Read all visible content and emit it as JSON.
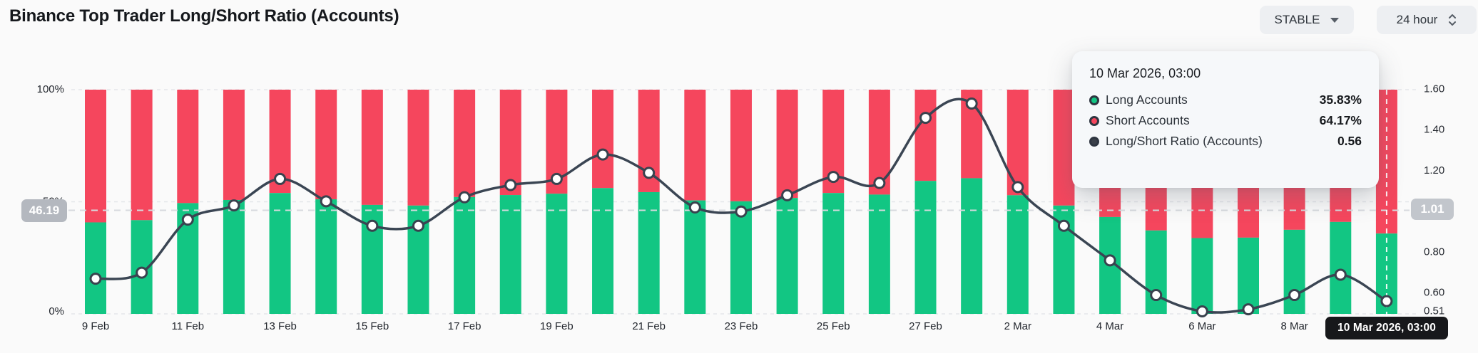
{
  "header": {
    "title": "Binance Top Trader Long/Short Ratio (Accounts)",
    "stable_label": "STABLE",
    "interval_label": "24 hour"
  },
  "left_axis": {
    "tick_labels": [
      "100%",
      "50%",
      "0%"
    ],
    "tick_values": [
      100,
      50,
      0
    ],
    "badge": "46.19"
  },
  "right_axis": {
    "tick_labels": [
      "1.60",
      "1.40",
      "1.20",
      "0.80",
      "0.60",
      "0.51"
    ],
    "tick_values": [
      1.6,
      1.4,
      1.2,
      0.8,
      0.6,
      0.51
    ],
    "badge": "1.01"
  },
  "x_axis": {
    "hover_label": "10 Mar 2026, 03:00"
  },
  "tooltip": {
    "title": "10 Mar 2026, 03:00",
    "rows": [
      {
        "label": "Long Accounts",
        "value": "35.83%",
        "color": "#12c683"
      },
      {
        "label": "Short Accounts",
        "value": "64.17%",
        "color": "#f5465d"
      },
      {
        "label": "Long/Short Ratio (Accounts)",
        "value": "0.56",
        "color": "#3a4049"
      }
    ]
  },
  "chart_data": {
    "type": "stacked_bar_with_line",
    "title": "Binance Top Trader Long/Short Ratio (Accounts)",
    "n_points": 29,
    "x_ticks": [
      {
        "index": 0,
        "label": "9 Feb"
      },
      {
        "index": 2,
        "label": "11 Feb"
      },
      {
        "index": 4,
        "label": "13 Feb"
      },
      {
        "index": 6,
        "label": "15 Feb"
      },
      {
        "index": 8,
        "label": "17 Feb"
      },
      {
        "index": 10,
        "label": "19 Feb"
      },
      {
        "index": 12,
        "label": "21 Feb"
      },
      {
        "index": 14,
        "label": "23 Feb"
      },
      {
        "index": 16,
        "label": "25 Feb"
      },
      {
        "index": 18,
        "label": "27 Feb"
      },
      {
        "index": 20,
        "label": "2 Mar"
      },
      {
        "index": 22,
        "label": "4 Mar"
      },
      {
        "index": 24,
        "label": "6 Mar"
      },
      {
        "index": 26,
        "label": "8 Mar"
      }
    ],
    "series": [
      {
        "name": "Long Accounts",
        "unit": "%",
        "color": "#12c683",
        "values": [
          40.8,
          41.8,
          49.4,
          50.8,
          53.9,
          51.1,
          48.6,
          48.3,
          52.1,
          53.0,
          53.6,
          56.1,
          54.3,
          50.6,
          50.2,
          51.7,
          53.9,
          53.2,
          59.3,
          60.5,
          52.9,
          48.3,
          43.2,
          37.2,
          33.8,
          34.0,
          37.5,
          41.0,
          35.83
        ]
      },
      {
        "name": "Short Accounts",
        "unit": "%",
        "color": "#f5465d",
        "values": [
          59.2,
          58.2,
          50.6,
          49.2,
          46.1,
          48.9,
          51.4,
          51.7,
          47.9,
          47.0,
          46.4,
          43.9,
          45.7,
          49.4,
          49.8,
          48.3,
          46.1,
          46.8,
          40.7,
          39.5,
          47.1,
          51.7,
          56.8,
          62.8,
          66.2,
          66.0,
          62.5,
          59.0,
          64.17
        ]
      },
      {
        "name": "Long/Short Ratio (Accounts)",
        "unit": "",
        "color": "#3a4553",
        "values": [
          0.67,
          0.7,
          0.96,
          1.03,
          1.16,
          1.05,
          0.93,
          0.93,
          1.07,
          1.13,
          1.16,
          1.28,
          1.19,
          1.02,
          1.0,
          1.08,
          1.17,
          1.14,
          1.46,
          1.53,
          1.12,
          0.93,
          0.76,
          0.59,
          0.51,
          0.52,
          0.59,
          0.69,
          0.56
        ]
      }
    ],
    "left_axis_range": [
      0,
      100
    ],
    "right_axis_range": [
      0.51,
      1.6
    ],
    "current_long_pct_line": 46.19,
    "current_ratio_line": 1.01,
    "hovered_point": {
      "index": 28,
      "label": "10 Mar 2026, 03:00",
      "long_pct": 35.83,
      "short_pct": 64.17,
      "ratio": 0.56
    },
    "legend_position": "tooltip",
    "grid": "horizontal-dashed"
  },
  "colors": {
    "long": "#12c683",
    "short": "#f5465d",
    "ratio_line": "#3a4553",
    "background": "#fafafa",
    "grid": "#e4e6e9",
    "dashed_marker": "#d7dade"
  }
}
